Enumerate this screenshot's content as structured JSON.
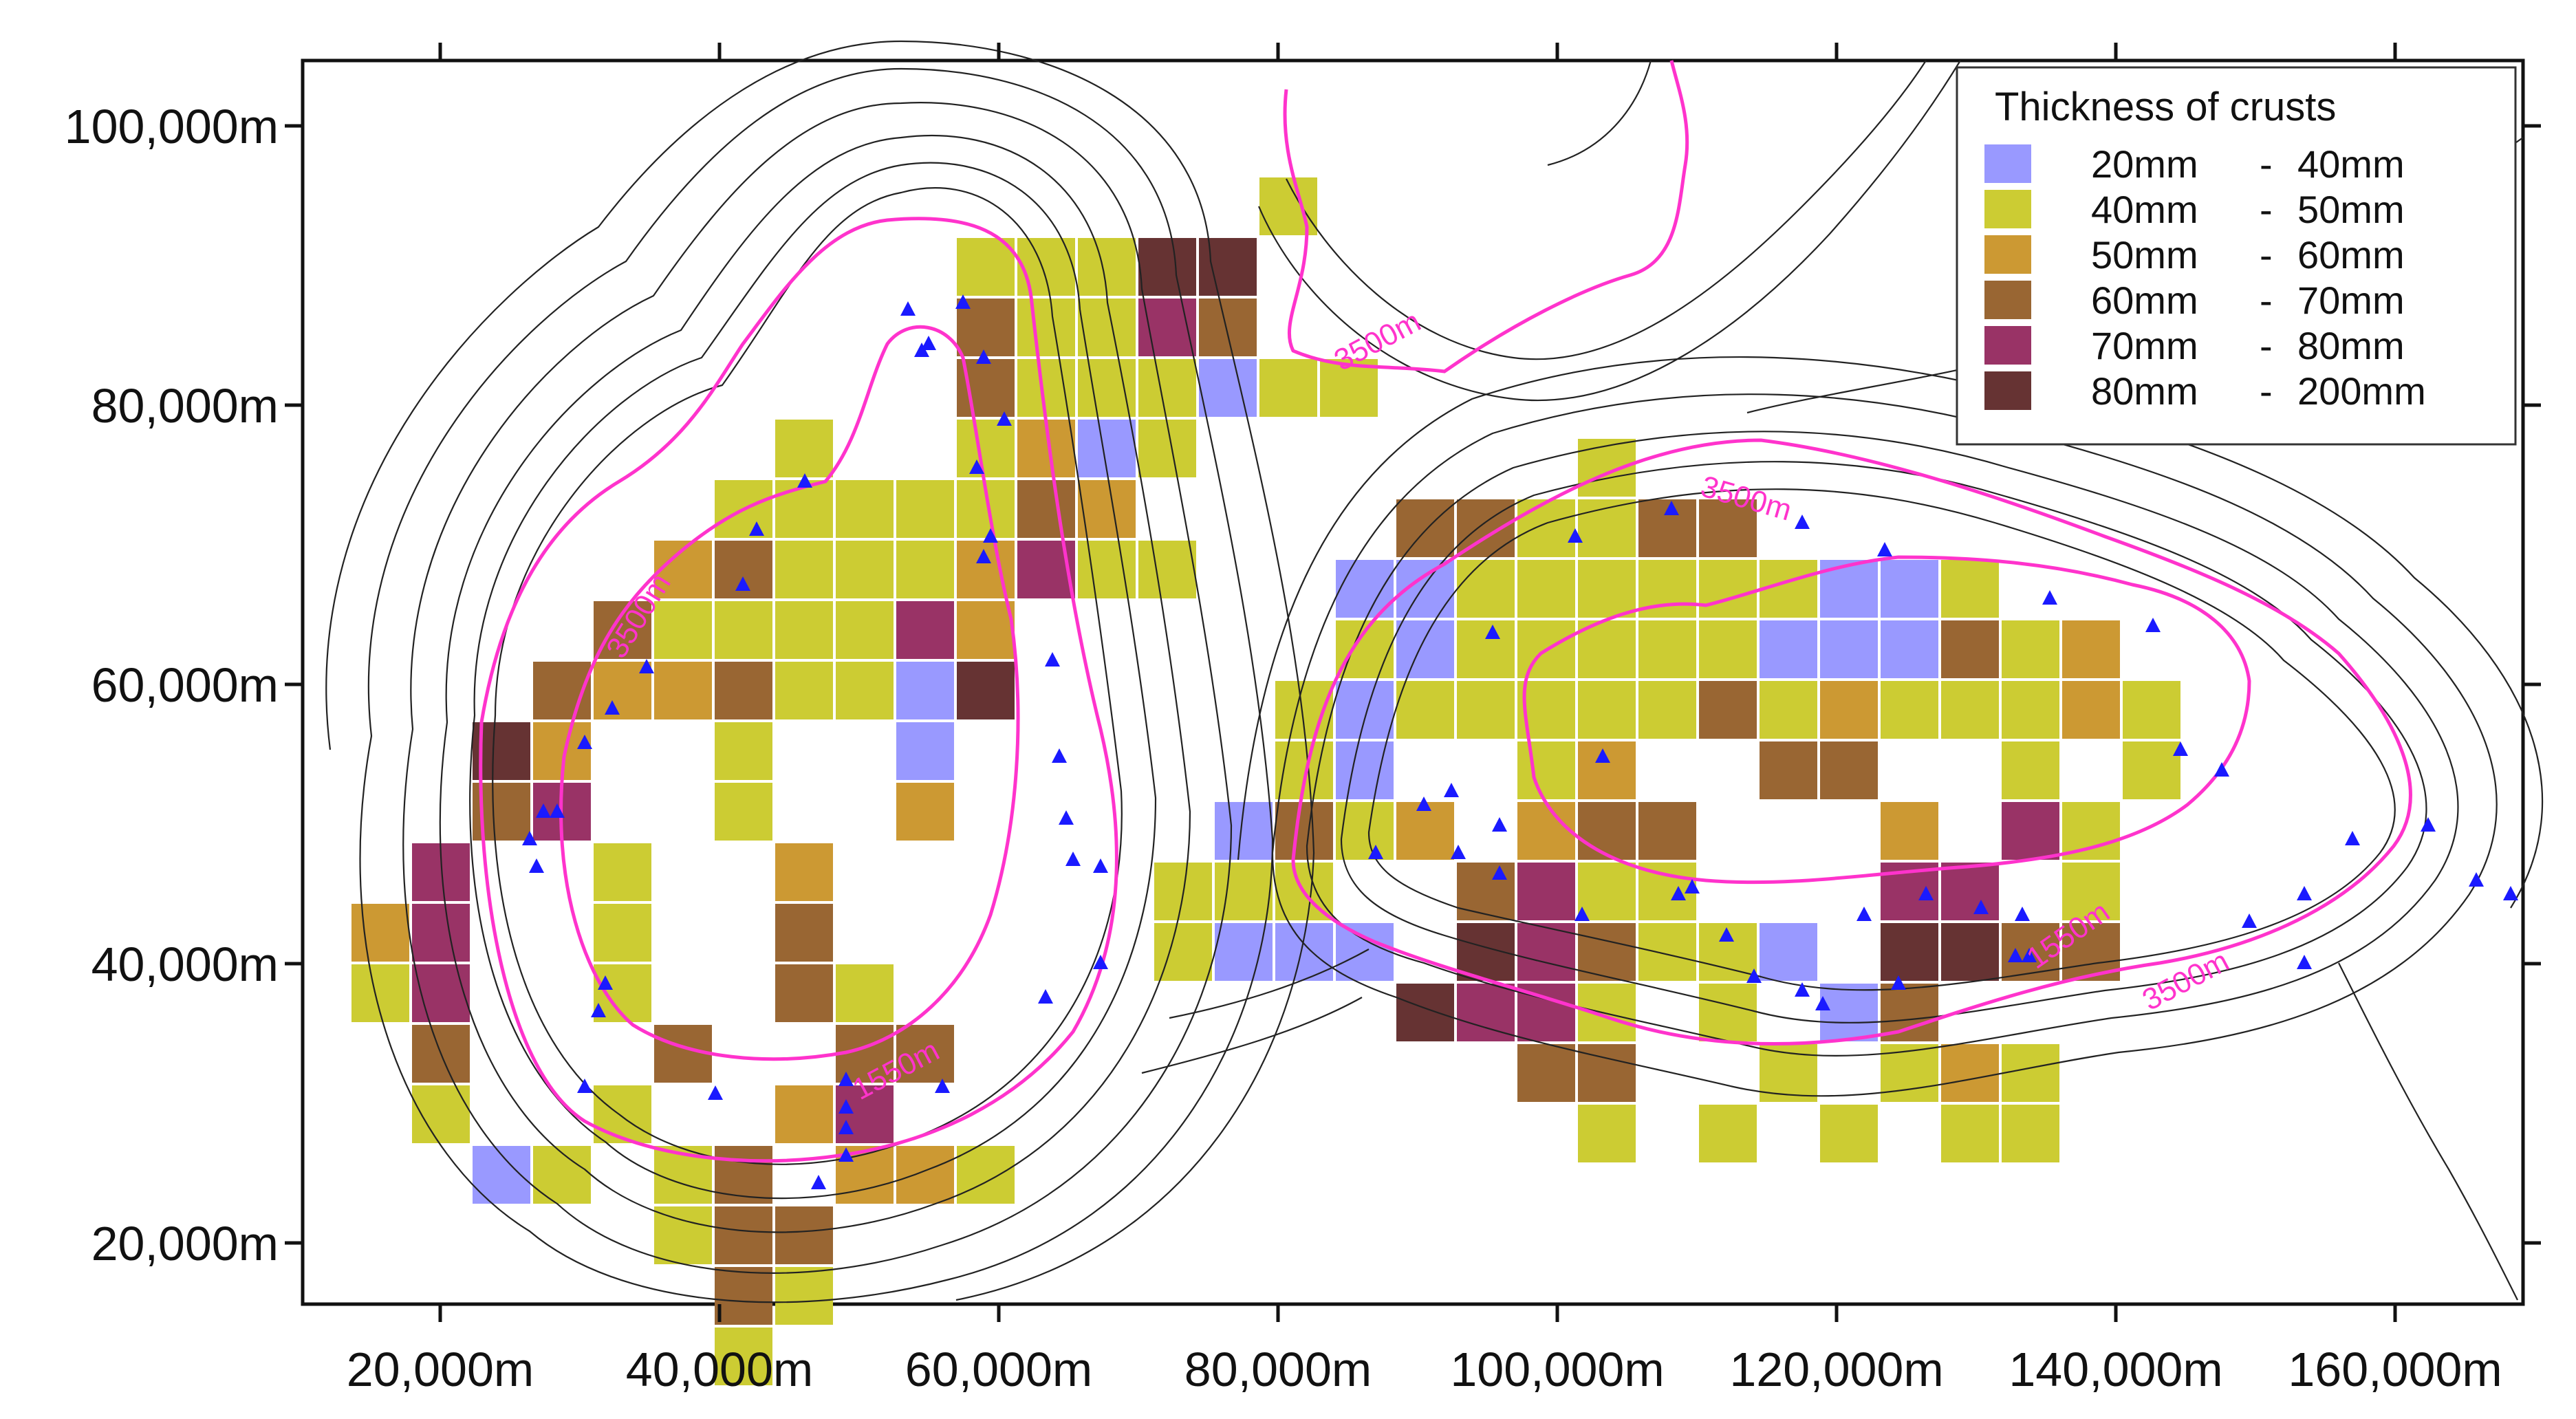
{
  "legend": {
    "title": "Thickness of crusts",
    "classes": [
      {
        "range_min": "20mm",
        "range_max": "40mm",
        "color": "#9999ff"
      },
      {
        "range_min": "40mm",
        "range_max": "50mm",
        "color": "#cccc33"
      },
      {
        "range_min": "50mm",
        "range_max": "60mm",
        "color": "#cc9933"
      },
      {
        "range_min": "60mm",
        "range_max": "70mm",
        "color": "#996633"
      },
      {
        "range_min": "70mm",
        "range_max": "80mm",
        "color": "#993366"
      },
      {
        "range_min": "80mm",
        "range_max": "200mm",
        "color": "#663333"
      }
    ]
  },
  "axes": {
    "x_ticks": [
      "20,000m",
      "40,000m",
      "60,000m",
      "80,000m",
      "100,000m",
      "120,000m",
      "140,000m",
      "160,000m"
    ],
    "y_ticks": [
      "100,000m",
      "80,000m",
      "60,000m",
      "40,000m",
      "20,000m"
    ]
  },
  "contour_labels": [
    {
      "text": "3500m",
      "name": "contour-label-3500m-west"
    },
    {
      "text": "1550m",
      "name": "contour-label-1550m-west"
    },
    {
      "text": "3500m",
      "name": "contour-label-3500m-north"
    },
    {
      "text": "3500m",
      "name": "contour-label-3500m-east-top"
    },
    {
      "text": "1550m",
      "name": "contour-label-1550m-east"
    },
    {
      "text": "3500m",
      "name": "contour-label-3500m-east-bottom"
    }
  ],
  "colors": {
    "isobath": "#ff33cc",
    "sample_marker": "#1a1aff",
    "contour": "#222222"
  }
}
